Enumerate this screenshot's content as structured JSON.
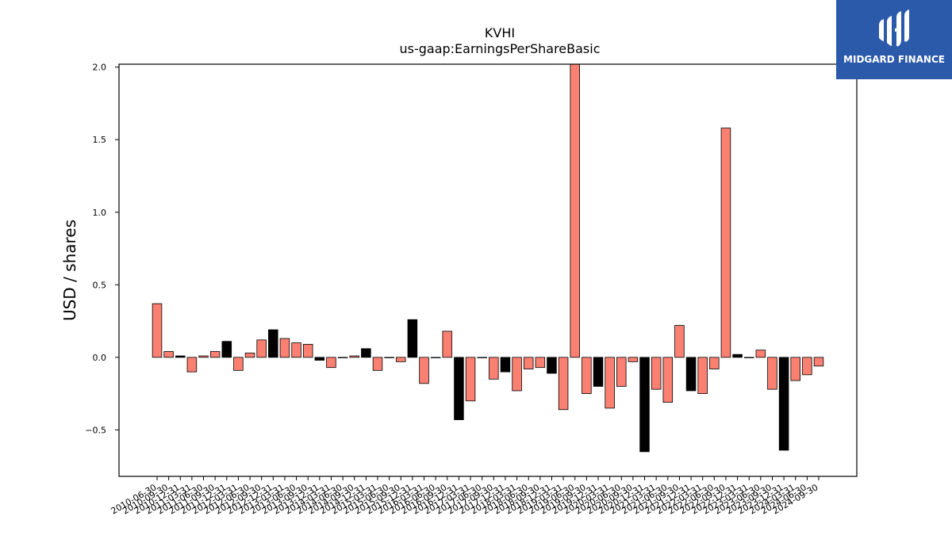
{
  "logo": {
    "brand": "MIDGARD FINANCE"
  },
  "chart_data": {
    "type": "bar",
    "title": "KVHI",
    "subtitle": "us-gaap:EarningsPerShareBasic",
    "xlabel": "",
    "ylabel": "USD / shares",
    "ylim": [
      -0.82,
      2.02
    ],
    "yticks": [
      -0.5,
      0.0,
      0.5,
      1.0,
      1.5,
      2.0
    ],
    "ytick_labels": [
      "−0.5",
      "0.0",
      "0.5",
      "1.0",
      "1.5",
      "2.0"
    ],
    "grid": false,
    "colors": {
      "pos": "#fa8072",
      "neg": "#000000"
    },
    "categories": [
      "2010-06-30",
      "2010-09-30",
      "2010-12-31",
      "2011-03-31",
      "2011-06-30",
      "2011-09-30",
      "2011-12-31",
      "2012-03-31",
      "2012-06-30",
      "2012-09-30",
      "2012-12-31",
      "2013-03-31",
      "2013-06-30",
      "2013-09-30",
      "2013-12-31",
      "2014-03-31",
      "2014-06-30",
      "2014-09-30",
      "2014-12-31",
      "2015-03-31",
      "2015-06-30",
      "2015-09-30",
      "2015-12-31",
      "2016-03-31",
      "2016-06-30",
      "2016-09-30",
      "2016-12-31",
      "2017-03-31",
      "2017-06-30",
      "2017-09-30",
      "2017-12-31",
      "2018-03-31",
      "2018-06-30",
      "2018-09-30",
      "2018-12-31",
      "2019-03-31",
      "2019-06-30",
      "2019-09-30",
      "2019-12-31",
      "2020-03-31",
      "2020-06-30",
      "2020-09-30",
      "2020-12-31",
      "2021-03-31",
      "2021-06-30",
      "2021-09-30",
      "2021-12-31",
      "2022-03-31",
      "2022-06-30",
      "2022-09-30",
      "2022-12-31",
      "2023-03-31",
      "2023-06-30",
      "2023-09-30",
      "2023-12-31",
      "2024-03-31",
      "2024-06-30",
      "2024-09-30"
    ],
    "values": [
      0.37,
      0.04,
      0.01,
      -0.1,
      0.01,
      0.04,
      0.11,
      -0.09,
      0.03,
      0.12,
      0.19,
      0.13,
      0.1,
      0.09,
      -0.02,
      -0.07,
      0.0,
      0.01,
      0.06,
      -0.09,
      0.0,
      -0.03,
      0.26,
      -0.18,
      0.0,
      0.18,
      -0.43,
      -0.3,
      0.0,
      -0.15,
      -0.1,
      -0.23,
      -0.08,
      -0.07,
      -0.11,
      -0.36,
      2.03,
      -0.25,
      -0.2,
      -0.35,
      -0.2,
      -0.03,
      -0.65,
      -0.22,
      -0.31,
      0.22,
      -0.23,
      -0.25,
      -0.08,
      1.58,
      0.02,
      0.0,
      0.05,
      -0.22,
      -0.64,
      -0.16,
      -0.12,
      -0.06
    ],
    "bar_colors": [
      "pos",
      "pos",
      "neg",
      "pos",
      "pos",
      "pos",
      "neg",
      "pos",
      "pos",
      "pos",
      "neg",
      "pos",
      "pos",
      "pos",
      "neg",
      "pos",
      "pos",
      "pos",
      "neg",
      "pos",
      "neg",
      "pos",
      "neg",
      "pos",
      "neg",
      "pos",
      "neg",
      "pos",
      "neg",
      "pos",
      "neg",
      "pos",
      "pos",
      "pos",
      "neg",
      "pos",
      "pos",
      "pos",
      "neg",
      "pos",
      "pos",
      "pos",
      "neg",
      "pos",
      "pos",
      "pos",
      "neg",
      "pos",
      "pos",
      "pos",
      "neg",
      "pos",
      "pos",
      "pos",
      "neg",
      "pos",
      "pos",
      "pos"
    ]
  }
}
